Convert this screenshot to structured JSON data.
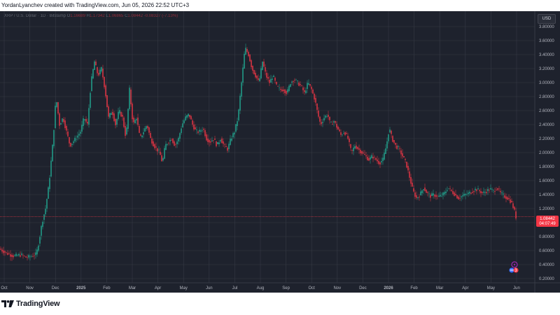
{
  "header": {
    "text": "YordanLyanchev created with TradingView.com, Jun 05, 2026 22:52 UTC+3"
  },
  "legend": {
    "symbol": "XRP / U.S. Dollar · 1D · Bitstamp",
    "o": "O",
    "o_val": "1.16689",
    "h": "H",
    "h_val": "1.17342",
    "l": "L",
    "l_val": "1.06865",
    "c": "C",
    "c_val": "1.08442",
    "change": "-0.08327 (-7.13%)"
  },
  "currency": "USD",
  "price_tag": {
    "price": "1.08442",
    "countdown": "04:07:49"
  },
  "event_badge": {
    "count": "3"
  },
  "brand": {
    "name": "TradingView"
  },
  "colors": {
    "up": "#22ab94",
    "down": "#f23645",
    "grid": "#363a45",
    "background": "#1e222d",
    "text": "#b2b5be"
  },
  "chart_data": {
    "type": "candlestick",
    "title": "XRP / U.S. Dollar · 1D · Bitstamp",
    "ylim": [
      0.2,
      3.8
    ],
    "y_ticks": [
      "0.20000",
      "0.40000",
      "0.60000",
      "0.80000",
      "1.00000",
      "1.20000",
      "1.40000",
      "1.60000",
      "1.80000",
      "2.00000",
      "2.20000",
      "2.40000",
      "2.60000",
      "2.80000",
      "3.00000",
      "3.20000",
      "3.40000",
      "3.60000",
      "3.80000"
    ],
    "x_ticks": [
      "Oct",
      "Nov",
      "Dec",
      "2025",
      "Feb",
      "Mar",
      "Apr",
      "May",
      "Jun",
      "Jul",
      "Aug",
      "Sep",
      "Oct",
      "Nov",
      "Dec",
      "2026",
      "Feb",
      "Mar",
      "Apr",
      "May",
      "Jun"
    ],
    "last_price": 1.08442,
    "price_path": [
      [
        0,
        0.62
      ],
      [
        10,
        0.56
      ],
      [
        20,
        0.52
      ],
      [
        30,
        0.54
      ],
      [
        38,
        0.5
      ],
      [
        45,
        0.52
      ],
      [
        52,
        0.55
      ],
      [
        56,
        0.75
      ],
      [
        60,
        1.0
      ],
      [
        65,
        1.2
      ],
      [
        70,
        1.55
      ],
      [
        76,
        2.2
      ],
      [
        80,
        2.8
      ],
      [
        85,
        2.4
      ],
      [
        90,
        2.5
      ],
      [
        95,
        2.3
      ],
      [
        100,
        2.1
      ],
      [
        108,
        2.2
      ],
      [
        115,
        2.3
      ],
      [
        120,
        2.5
      ],
      [
        125,
        2.4
      ],
      [
        130,
        3.0
      ],
      [
        135,
        3.3
      ],
      [
        140,
        3.1
      ],
      [
        145,
        3.2
      ],
      [
        150,
        2.9
      ],
      [
        155,
        2.5
      ],
      [
        160,
        2.6
      ],
      [
        165,
        2.4
      ],
      [
        170,
        2.6
      ],
      [
        175,
        2.5
      ],
      [
        180,
        2.2
      ],
      [
        185,
        2.9
      ],
      [
        190,
        2.4
      ],
      [
        195,
        2.5
      ],
      [
        200,
        2.2
      ],
      [
        205,
        2.3
      ],
      [
        210,
        2.4
      ],
      [
        215,
        2.2
      ],
      [
        220,
        2.1
      ],
      [
        228,
        2.0
      ],
      [
        232,
        1.85
      ],
      [
        236,
        2.1
      ],
      [
        240,
        2.15
      ],
      [
        245,
        2.2
      ],
      [
        250,
        2.1
      ],
      [
        255,
        2.2
      ],
      [
        260,
        2.4
      ],
      [
        265,
        2.5
      ],
      [
        270,
        2.55
      ],
      [
        275,
        2.4
      ],
      [
        280,
        2.3
      ],
      [
        285,
        2.3
      ],
      [
        290,
        2.35
      ],
      [
        295,
        2.2
      ],
      [
        300,
        2.15
      ],
      [
        305,
        2.2
      ],
      [
        310,
        2.1
      ],
      [
        315,
        2.2
      ],
      [
        320,
        2.1
      ],
      [
        325,
        2.05
      ],
      [
        330,
        2.2
      ],
      [
        335,
        2.3
      ],
      [
        340,
        2.5
      ],
      [
        345,
        3.0
      ],
      [
        350,
        3.5
      ],
      [
        355,
        3.4
      ],
      [
        360,
        3.2
      ],
      [
        365,
        3.1
      ],
      [
        370,
        3.0
      ],
      [
        375,
        3.3
      ],
      [
        380,
        3.1
      ],
      [
        385,
        3.0
      ],
      [
        390,
        3.1
      ],
      [
        395,
        2.95
      ],
      [
        400,
        2.9
      ],
      [
        405,
        2.9
      ],
      [
        410,
        2.85
      ],
      [
        415,
        3.0
      ],
      [
        420,
        3.05
      ],
      [
        425,
        3.0
      ],
      [
        430,
        2.95
      ],
      [
        435,
        2.85
      ],
      [
        440,
        3.0
      ],
      [
        445,
        2.9
      ],
      [
        450,
        2.75
      ],
      [
        454,
        2.55
      ],
      [
        458,
        2.4
      ],
      [
        463,
        2.5
      ],
      [
        468,
        2.55
      ],
      [
        472,
        2.4
      ],
      [
        477,
        2.45
      ],
      [
        482,
        2.35
      ],
      [
        487,
        2.25
      ],
      [
        492,
        2.3
      ],
      [
        497,
        2.2
      ],
      [
        502,
        2.0
      ],
      [
        507,
        2.1
      ],
      [
        512,
        2.05
      ],
      [
        517,
        2.0
      ],
      [
        522,
        1.95
      ],
      [
        527,
        1.9
      ],
      [
        532,
        1.95
      ],
      [
        537,
        1.9
      ],
      [
        542,
        1.85
      ],
      [
        547,
        1.9
      ],
      [
        552,
        2.1
      ],
      [
        556,
        2.35
      ],
      [
        560,
        2.2
      ],
      [
        565,
        2.1
      ],
      [
        570,
        2.05
      ],
      [
        575,
        1.95
      ],
      [
        580,
        1.85
      ],
      [
        585,
        1.65
      ],
      [
        590,
        1.45
      ],
      [
        595,
        1.35
      ],
      [
        600,
        1.4
      ],
      [
        605,
        1.5
      ],
      [
        610,
        1.42
      ],
      [
        615,
        1.38
      ],
      [
        620,
        1.4
      ],
      [
        625,
        1.37
      ],
      [
        630,
        1.38
      ],
      [
        635,
        1.42
      ],
      [
        640,
        1.5
      ],
      [
        645,
        1.45
      ],
      [
        650,
        1.4
      ],
      [
        655,
        1.35
      ],
      [
        660,
        1.38
      ],
      [
        665,
        1.4
      ],
      [
        670,
        1.42
      ],
      [
        675,
        1.45
      ],
      [
        680,
        1.48
      ],
      [
        685,
        1.45
      ],
      [
        690,
        1.42
      ],
      [
        695,
        1.45
      ],
      [
        700,
        1.48
      ],
      [
        705,
        1.45
      ],
      [
        710,
        1.5
      ],
      [
        715,
        1.42
      ],
      [
        720,
        1.38
      ],
      [
        725,
        1.35
      ],
      [
        730,
        1.3
      ],
      [
        734,
        1.2
      ],
      [
        737,
        1.08
      ]
    ]
  }
}
